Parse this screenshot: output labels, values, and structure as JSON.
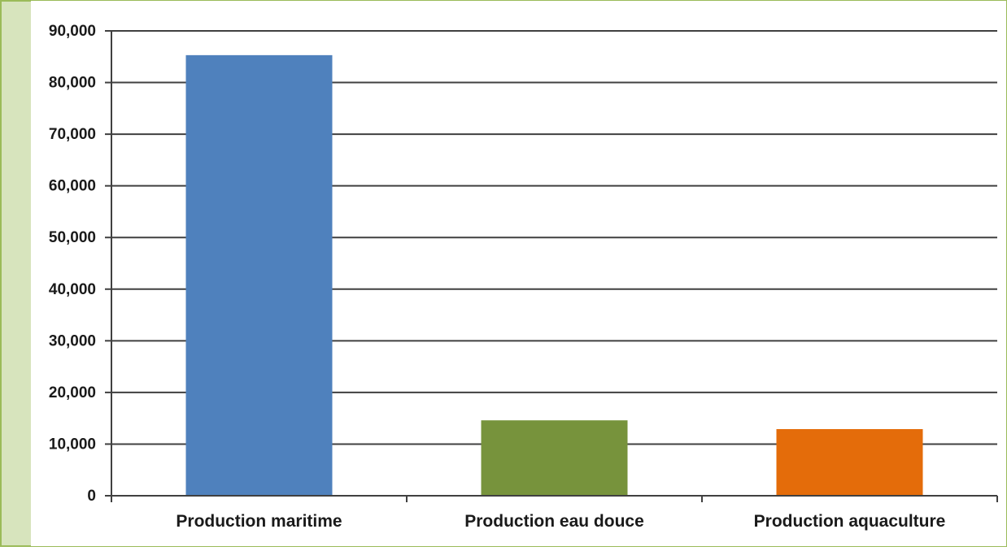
{
  "colors": {
    "frame_background": "#d7e4bd",
    "frame_border": "#9bbb59",
    "plot_background": "#ffffff",
    "gridline": "#404040",
    "axis": "#404040",
    "text": "#1a1a1a"
  },
  "chart_data": {
    "type": "bar",
    "categories": [
      "Production maritime",
      "Production eau douce",
      "Production aquaculture"
    ],
    "values": [
      85300,
      14600,
      12900
    ],
    "bar_colors": [
      "#4f81bd",
      "#77933c",
      "#e46c0a"
    ],
    "title": "",
    "xlabel": "",
    "ylabel": "",
    "ylim": [
      0,
      90000
    ],
    "ytick_step": 10000,
    "ytick_labels": [
      "0",
      "10,000",
      "20,000",
      "30,000",
      "40,000",
      "50,000",
      "60,000",
      "70,000",
      "80,000",
      "90,000"
    ],
    "grid": true,
    "legend": "none"
  }
}
